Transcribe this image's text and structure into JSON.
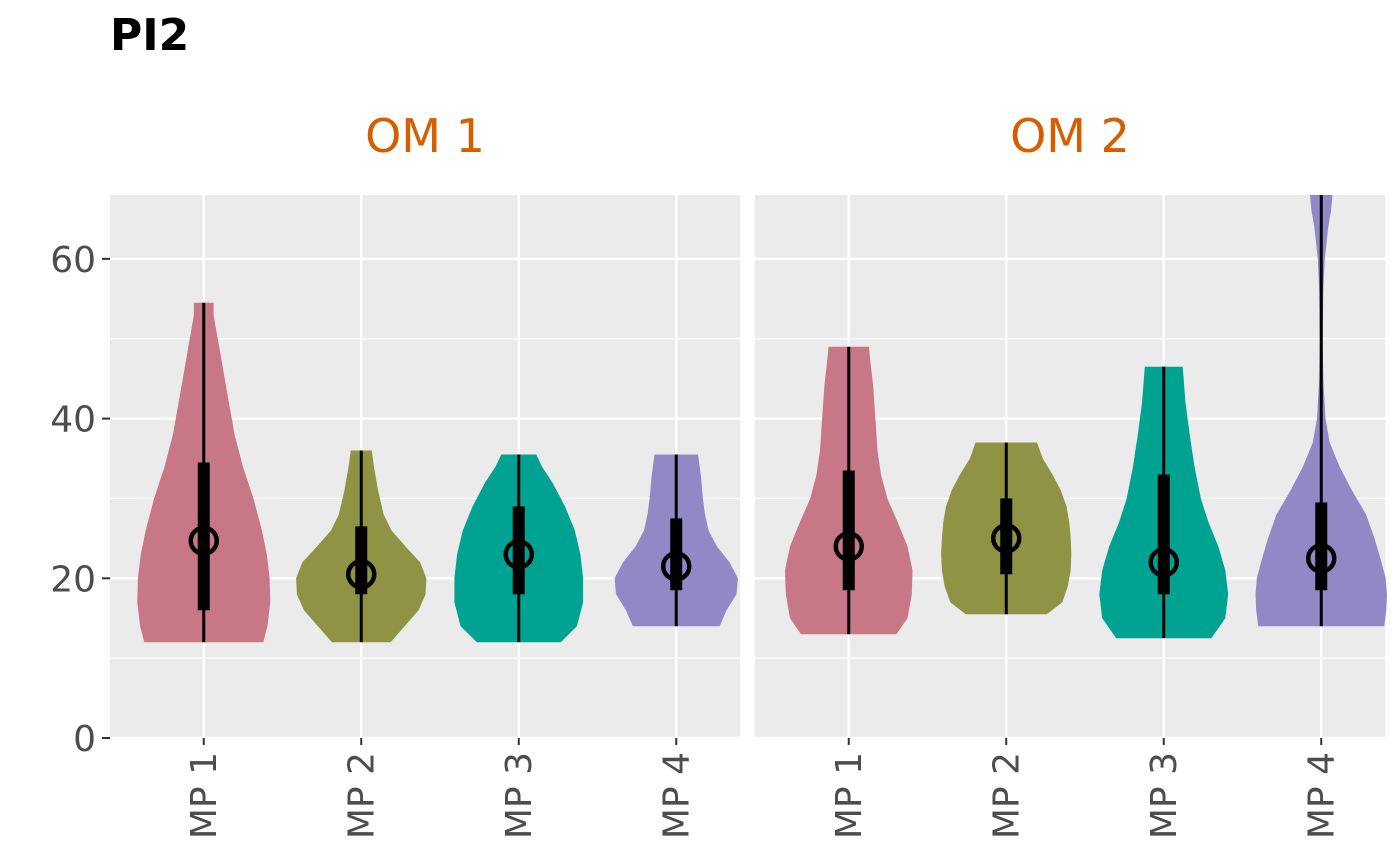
{
  "chart_data": {
    "type": "violin",
    "title": "PI2",
    "xlabel": "",
    "ylabel": "",
    "ylim": [
      0,
      68
    ],
    "yticks": [
      0,
      20,
      40,
      60
    ],
    "grid": true,
    "categories": [
      "MP 1",
      "MP 2",
      "MP 3",
      "MP 4"
    ],
    "colors": [
      "#C77786",
      "#8E9444",
      "#00A391",
      "#9189C6"
    ],
    "panels": [
      {
        "label": "OM 1",
        "violins": [
          {
            "category": "MP 1",
            "min": 12.0,
            "max": 54.5,
            "q1": 16.0,
            "median": 24.7,
            "q3": 34.5,
            "profile": [
              [
                12.0,
                0.85
              ],
              [
                14,
                0.91
              ],
              [
                17,
                0.95
              ],
              [
                20,
                0.94
              ],
              [
                23,
                0.9
              ],
              [
                26,
                0.83
              ],
              [
                30,
                0.71
              ],
              [
                34,
                0.56
              ],
              [
                38,
                0.44
              ],
              [
                42,
                0.36
              ],
              [
                46,
                0.28
              ],
              [
                49,
                0.22
              ],
              [
                51,
                0.18
              ],
              [
                53,
                0.14
              ],
              [
                54.5,
                0.14
              ]
            ]
          },
          {
            "category": "MP 2",
            "min": 12.0,
            "max": 36.0,
            "q1": 18.0,
            "median": 20.5,
            "q3": 26.5,
            "profile": [
              [
                12.0,
                0.42
              ],
              [
                14,
                0.62
              ],
              [
                16,
                0.82
              ],
              [
                18,
                0.92
              ],
              [
                20,
                0.93
              ],
              [
                22,
                0.84
              ],
              [
                24,
                0.63
              ],
              [
                26,
                0.43
              ],
              [
                28,
                0.32
              ],
              [
                31,
                0.24
              ],
              [
                34,
                0.18
              ],
              [
                36,
                0.15
              ]
            ]
          },
          {
            "category": "MP 3",
            "min": 12.0,
            "max": 35.5,
            "q1": 18.0,
            "median": 23.0,
            "q3": 29.0,
            "profile": [
              [
                12.0,
                0.6
              ],
              [
                14,
                0.83
              ],
              [
                17,
                0.92
              ],
              [
                20,
                0.92
              ],
              [
                23,
                0.88
              ],
              [
                26,
                0.8
              ],
              [
                29,
                0.66
              ],
              [
                32,
                0.48
              ],
              [
                34,
                0.33
              ],
              [
                35.5,
                0.25
              ]
            ]
          },
          {
            "category": "MP 4",
            "min": 14.0,
            "max": 35.5,
            "q1": 18.5,
            "median": 21.5,
            "q3": 27.5,
            "profile": [
              [
                14.0,
                0.62
              ],
              [
                16,
                0.72
              ],
              [
                18,
                0.86
              ],
              [
                20,
                0.88
              ],
              [
                22,
                0.76
              ],
              [
                24,
                0.58
              ],
              [
                26,
                0.46
              ],
              [
                28,
                0.41
              ],
              [
                30,
                0.38
              ],
              [
                33,
                0.35
              ],
              [
                35.5,
                0.31
              ]
            ]
          }
        ]
      },
      {
        "label": "OM 2",
        "violins": [
          {
            "category": "MP 1",
            "min": 13.0,
            "max": 49.0,
            "q1": 18.5,
            "median": 24.0,
            "q3": 33.5,
            "profile": [
              [
                13.0,
                0.68
              ],
              [
                15,
                0.84
              ],
              [
                18,
                0.9
              ],
              [
                21,
                0.91
              ],
              [
                24,
                0.84
              ],
              [
                27,
                0.7
              ],
              [
                30,
                0.55
              ],
              [
                33,
                0.46
              ],
              [
                36,
                0.41
              ],
              [
                40,
                0.38
              ],
              [
                44,
                0.35
              ],
              [
                47,
                0.31
              ],
              [
                49,
                0.29
              ]
            ]
          },
          {
            "category": "MP 2",
            "min": 15.5,
            "max": 37.0,
            "q1": 20.5,
            "median": 25.0,
            "q3": 30.0,
            "profile": [
              [
                15.5,
                0.58
              ],
              [
                17,
                0.8
              ],
              [
                19,
                0.88
              ],
              [
                21,
                0.92
              ],
              [
                23,
                0.93
              ],
              [
                25,
                0.92
              ],
              [
                27,
                0.9
              ],
              [
                29,
                0.86
              ],
              [
                31,
                0.78
              ],
              [
                33,
                0.66
              ],
              [
                35,
                0.52
              ],
              [
                37,
                0.44
              ]
            ]
          },
          {
            "category": "MP 3",
            "min": 12.5,
            "max": 46.5,
            "q1": 18.0,
            "median": 22.0,
            "q3": 33.0,
            "profile": [
              [
                12.5,
                0.68
              ],
              [
                15,
                0.88
              ],
              [
                18,
                0.92
              ],
              [
                21,
                0.88
              ],
              [
                24,
                0.78
              ],
              [
                27,
                0.64
              ],
              [
                30,
                0.53
              ],
              [
                34,
                0.44
              ],
              [
                38,
                0.37
              ],
              [
                42,
                0.31
              ],
              [
                46.5,
                0.27
              ]
            ]
          },
          {
            "category": "MP 4",
            "min": 14.0,
            "max": 68.0,
            "q1": 18.5,
            "median": 22.5,
            "q3": 29.5,
            "profile": [
              [
                14.0,
                0.9
              ],
              [
                16,
                0.93
              ],
              [
                18,
                0.94
              ],
              [
                20,
                0.92
              ],
              [
                22,
                0.86
              ],
              [
                25,
                0.76
              ],
              [
                28,
                0.64
              ],
              [
                31,
                0.44
              ],
              [
                34,
                0.26
              ],
              [
                37,
                0.12
              ],
              [
                40,
                0.06
              ],
              [
                45,
                0.03
              ],
              [
                50,
                0.02
              ],
              [
                56,
                0.03
              ],
              [
                60,
                0.05
              ],
              [
                64,
                0.1
              ],
              [
                66,
                0.14
              ],
              [
                68,
                0.16
              ]
            ]
          }
        ]
      }
    ]
  }
}
